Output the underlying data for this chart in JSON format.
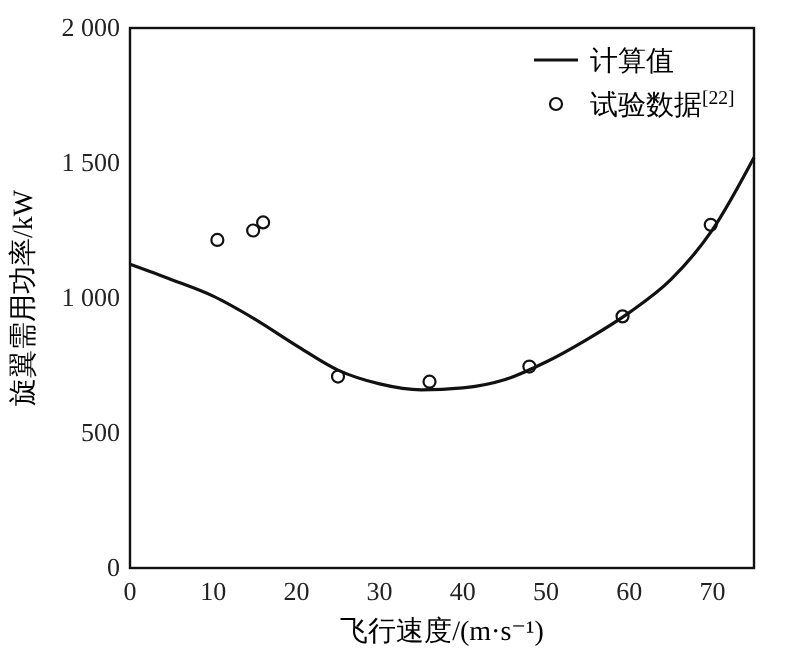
{
  "chart_data": {
    "type": "line",
    "xlabel": "飞行速度/(m·s⁻¹)",
    "ylabel": "旋翼需用功率/kW",
    "xlim": [
      0,
      75
    ],
    "ylim": [
      0,
      2000
    ],
    "xticks": [
      0,
      10,
      20,
      30,
      40,
      50,
      60,
      70
    ],
    "yticks": [
      {
        "value": 0,
        "label": "0"
      },
      {
        "value": 500,
        "label": "500"
      },
      {
        "value": 1000,
        "label": "1 000"
      },
      {
        "value": 1500,
        "label": "1 500"
      },
      {
        "value": 2000,
        "label": "2 000"
      }
    ],
    "legend": "top right",
    "grid": false,
    "series": [
      {
        "name": "计算值",
        "color": "#111111",
        "marker": "none",
        "line_style": "solid",
        "x": [
          0,
          5,
          10,
          15,
          20,
          25,
          30,
          35,
          40,
          45,
          50,
          55,
          60,
          65,
          70,
          75
        ],
        "values": [
          1125,
          1068,
          1007,
          922,
          824,
          733,
          682,
          660,
          667,
          697,
          763,
          848,
          946,
          1068,
          1252,
          1520
        ]
      },
      {
        "name": "试验数据$^{[22]}$",
        "type": "scatter",
        "color": "#111111",
        "marker": "circle",
        "x": [
          10.5,
          14.8,
          16,
          25,
          36,
          48,
          59.2,
          69.8
        ],
        "values": [
          1215,
          1250,
          1280,
          709,
          690,
          746,
          932,
          1271
        ]
      }
    ]
  }
}
